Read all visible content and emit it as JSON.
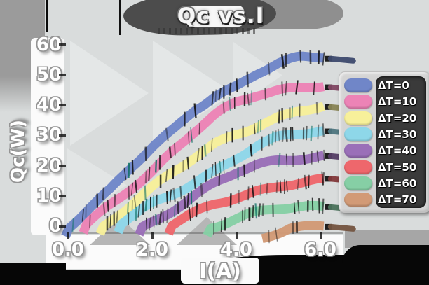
{
  "title": "Qc vs.I",
  "axes": {
    "xlabel": "I(A)",
    "ylabel": "Qc(W)",
    "x_ticks": [
      {
        "label": "0.0",
        "value": 0
      },
      {
        "label": "2.0",
        "value": 2
      },
      {
        "label": "4.0",
        "value": 4
      },
      {
        "label": "6.0",
        "value": 6
      }
    ],
    "y_ticks": [
      {
        "label": "0",
        "value": 0
      },
      {
        "label": "10",
        "value": 10
      },
      {
        "label": "20",
        "value": 20
      },
      {
        "label": "30",
        "value": 30
      },
      {
        "label": "40",
        "value": 40
      },
      {
        "label": "50",
        "value": 50
      },
      {
        "label": "60",
        "value": 60
      }
    ]
  },
  "chart_data": {
    "type": "line",
    "title": "Qc vs.I",
    "xlabel": "I(A)",
    "ylabel": "Qc(W)",
    "xlim": [
      0,
      6.7
    ],
    "ylim": [
      0,
      60
    ],
    "grid": false,
    "legend_position": "right",
    "series": [
      {
        "name": "ΔT=0",
        "color": "#7086c8",
        "points": [
          [
            -0.06,
            -2.5
          ],
          [
            0,
            0
          ],
          [
            0.5,
            6
          ],
          [
            1,
            11.5
          ],
          [
            1.5,
            19
          ],
          [
            2,
            26
          ],
          [
            2.5,
            32
          ],
          [
            3,
            39
          ],
          [
            3.5,
            43.5
          ],
          [
            4,
            46
          ],
          [
            4.5,
            50
          ],
          [
            5,
            53
          ],
          [
            5.5,
            55
          ],
          [
            6.08,
            56
          ]
        ]
      },
      {
        "name": "ΔT=10",
        "color": "#ec83b6",
        "points": [
          [
            0.36,
            -2.5
          ],
          [
            0.42,
            0
          ],
          [
            1,
            7
          ],
          [
            1.5,
            13
          ],
          [
            2,
            18.5
          ],
          [
            2.5,
            25
          ],
          [
            3,
            31
          ],
          [
            3.5,
            36
          ],
          [
            4,
            40
          ],
          [
            4.5,
            43
          ],
          [
            5,
            45
          ],
          [
            5.5,
            46.5
          ],
          [
            6.08,
            47.5
          ]
        ]
      },
      {
        "name": "ΔT=20",
        "color": "#f7f09a",
        "points": [
          [
            0.76,
            -2.5
          ],
          [
            0.82,
            0
          ],
          [
            1.5,
            7
          ],
          [
            2,
            12
          ],
          [
            2.5,
            17
          ],
          [
            3,
            22
          ],
          [
            3.5,
            27
          ],
          [
            4,
            31
          ],
          [
            4.5,
            34
          ],
          [
            5,
            36.5
          ],
          [
            5.5,
            38.5
          ],
          [
            6.08,
            39.5
          ]
        ]
      },
      {
        "name": "ΔT=30",
        "color": "#8ed7e9",
        "points": [
          [
            1.19,
            -2.5
          ],
          [
            1.25,
            0
          ],
          [
            2,
            7
          ],
          [
            2.5,
            11
          ],
          [
            3,
            15
          ],
          [
            3.5,
            19
          ],
          [
            4,
            23
          ],
          [
            4.5,
            26.5
          ],
          [
            5,
            29
          ],
          [
            5.5,
            30.5
          ],
          [
            6.08,
            31.5
          ]
        ]
      },
      {
        "name": "ΔT=40",
        "color": "#9a6fb8",
        "points": [
          [
            1.69,
            -2.5
          ],
          [
            1.75,
            0
          ],
          [
            2.5,
            6
          ],
          [
            3,
            10
          ],
          [
            3.5,
            14
          ],
          [
            4,
            17.5
          ],
          [
            4.5,
            20
          ],
          [
            5,
            22
          ],
          [
            5.5,
            23
          ],
          [
            6.08,
            23.5
          ]
        ]
      },
      {
        "name": "ΔT=50",
        "color": "#ee676c",
        "points": [
          [
            2.39,
            -2.5
          ],
          [
            2.45,
            0
          ],
          [
            3,
            4
          ],
          [
            3.5,
            7.5
          ],
          [
            4,
            10
          ],
          [
            4.5,
            12
          ],
          [
            5,
            13.5
          ],
          [
            5.5,
            14.2
          ],
          [
            6.08,
            14.5
          ]
        ]
      },
      {
        "name": "ΔT=60",
        "color": "#86cfa5",
        "points": [
          [
            3.31,
            -2.5
          ],
          [
            3.38,
            0
          ],
          [
            4,
            2.5
          ],
          [
            4.5,
            4
          ],
          [
            5,
            5
          ],
          [
            5.5,
            5.6
          ],
          [
            6.08,
            6
          ]
        ]
      },
      {
        "name": "ΔT=70",
        "color": "#d29a76",
        "points": [
          [
            4.62,
            -4.5
          ],
          [
            5.3,
            0
          ],
          [
            5.7,
            0.5
          ],
          [
            6.08,
            0.8
          ]
        ]
      }
    ]
  }
}
